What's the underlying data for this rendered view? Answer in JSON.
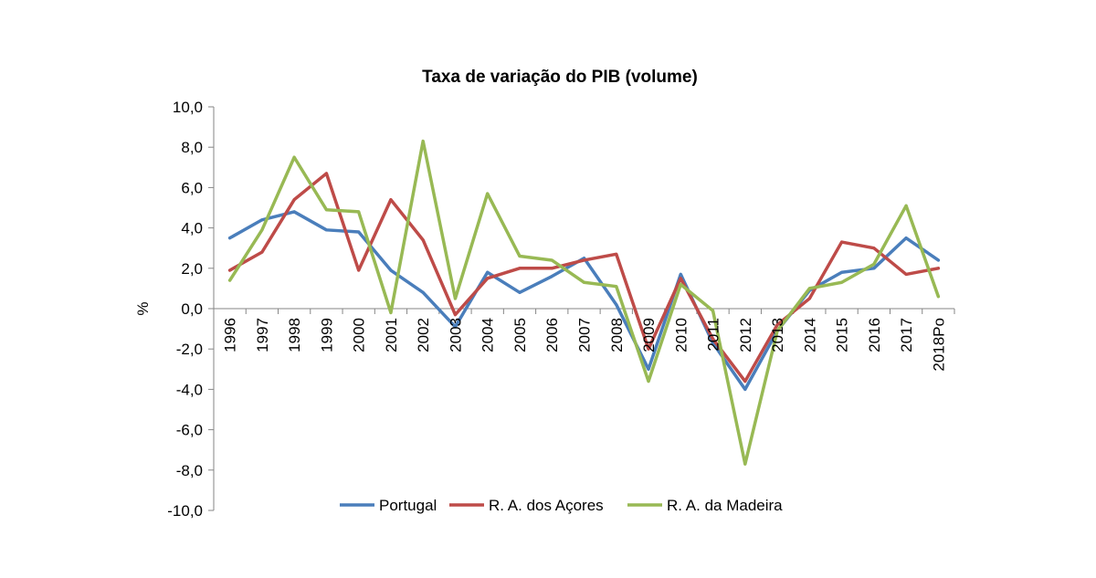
{
  "chart_data": {
    "type": "line",
    "title": "Taxa de variação do PIB (volume)",
    "xlabel": "",
    "ylabel": "%",
    "ylim": [
      -10,
      10
    ],
    "y_ticks": [
      "10,0",
      "8,0",
      "6,0",
      "4,0",
      "2,0",
      "0,0",
      "-2,0",
      "-4,0",
      "-6,0",
      "-8,0",
      "-10,0"
    ],
    "grid": false,
    "legend_position": "bottom",
    "categories": [
      "1996",
      "1997",
      "1998",
      "1999",
      "2000",
      "2001",
      "2002",
      "2003",
      "2004",
      "2005",
      "2006",
      "2007",
      "2008",
      "2009",
      "2010",
      "2011",
      "2012",
      "2013",
      "2014",
      "2015",
      "2016",
      "2017",
      "2018Po"
    ],
    "series": [
      {
        "name": "Portugal",
        "color": "#4a7ebb",
        "values": [
          3.5,
          4.4,
          4.8,
          3.9,
          3.8,
          1.9,
          0.8,
          -0.9,
          1.8,
          0.8,
          1.6,
          2.5,
          0.2,
          -3.0,
          1.7,
          -1.7,
          -4.0,
          -1.1,
          0.9,
          1.8,
          2.0,
          3.5,
          2.4
        ]
      },
      {
        "name": "R. A. dos Açores",
        "color": "#be4b48",
        "values": [
          1.9,
          2.8,
          5.4,
          6.7,
          1.9,
          5.4,
          3.4,
          -0.3,
          1.5,
          2.0,
          2.0,
          2.4,
          2.7,
          -2.0,
          1.5,
          -1.5,
          -3.6,
          -0.8,
          0.5,
          3.3,
          3.0,
          1.7,
          2.0
        ]
      },
      {
        "name": "R. A. da Madeira",
        "color": "#98b954",
        "values": [
          1.4,
          3.9,
          7.5,
          4.9,
          4.8,
          -0.2,
          8.3,
          0.5,
          5.7,
          2.6,
          2.4,
          1.3,
          1.1,
          -3.6,
          1.2,
          -0.1,
          -7.7,
          -1.1,
          1.0,
          1.3,
          2.2,
          5.1,
          0.6
        ]
      }
    ]
  }
}
